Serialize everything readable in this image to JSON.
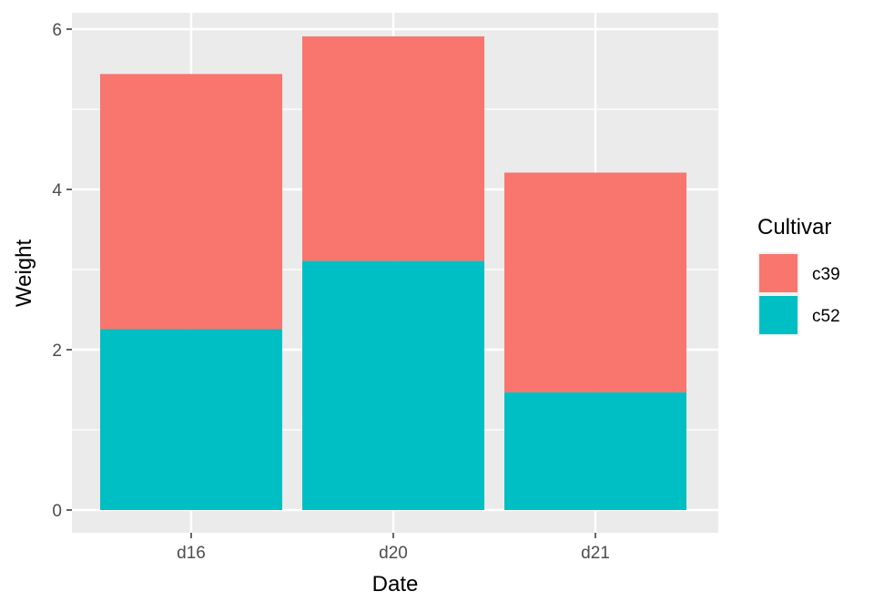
{
  "chart_data": {
    "type": "bar",
    "stacked": true,
    "title": "",
    "xlabel": "Date",
    "ylabel": "Weight",
    "categories": [
      "d16",
      "d20",
      "d21"
    ],
    "series": [
      {
        "name": "c39",
        "color": "#F8766D",
        "values": [
          3.18,
          2.8,
          2.74
        ]
      },
      {
        "name": "c52",
        "color": "#00BFC4",
        "values": [
          2.26,
          3.11,
          1.47
        ]
      }
    ],
    "ylim": [
      0,
      6.2
    ],
    "yticks": [
      0,
      2,
      4,
      6
    ],
    "yticks_minor": [
      1,
      3,
      5
    ],
    "grid": true,
    "panel_background": "#EBEBEB",
    "legend": {
      "title": "Cultivar",
      "position": "right",
      "items": [
        "c39",
        "c52"
      ]
    }
  }
}
